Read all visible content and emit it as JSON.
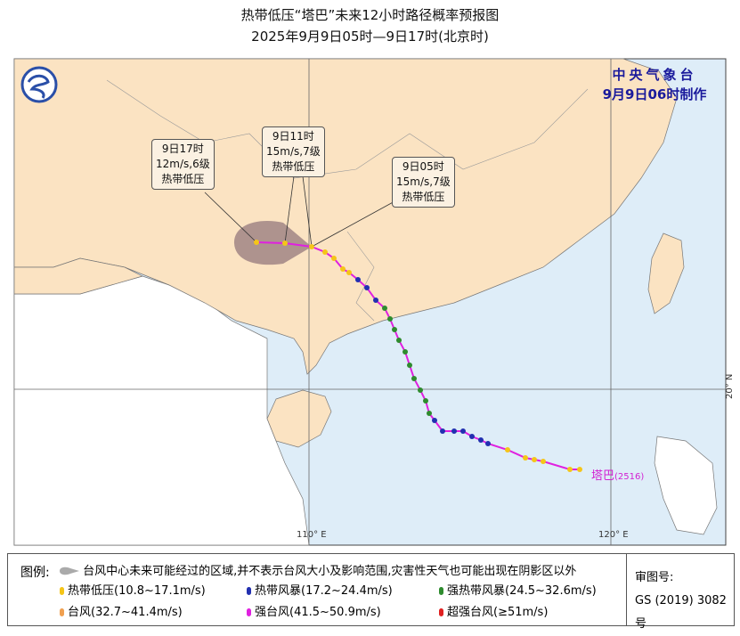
{
  "title": {
    "line1": "热带低压“塔巴”未来12小时路径概率预报图",
    "line2": "2025年9月9日05时—9日17时(北京时)"
  },
  "agency": {
    "name": "中央气象台",
    "issued": "9月9日06时制作"
  },
  "axes": {
    "lon110": "110° E",
    "lon120": "120° E",
    "lat20": "20° N"
  },
  "storm": {
    "name": "塔巴",
    "number": "(2516)"
  },
  "callouts": [
    {
      "time": "9日17时",
      "wind": "12m/s,6级",
      "category": "热带低压"
    },
    {
      "time": "9日11时",
      "wind": "15m/s,7级",
      "category": "热带低压"
    },
    {
      "time": "9日05时",
      "wind": "15m/s,7级",
      "category": "热带低压"
    }
  ],
  "colors": {
    "land": "#fbe3c2",
    "sea": "#deedf8",
    "track": "#e020e0",
    "cone": "#a08585",
    "td": "#f5c518",
    "ts": "#2230b0",
    "sts": "#2e8b2e",
    "ty": "#f0a050",
    "sty": "#e020e0",
    "superty": "#e02020"
  },
  "legend": {
    "title": "图例:",
    "cone_desc": "台风中心未来可能经过的区域,并不表示台风大小及影响范围,灾害性天气也可能出现在阴影区以外",
    "items": [
      {
        "label": "热带低压(10.8~17.1m/s)",
        "color": "#f5c518"
      },
      {
        "label": "热带风暴(17.2~24.4m/s)",
        "color": "#2230b0"
      },
      {
        "label": "强热带风暴(24.5~32.6m/s)",
        "color": "#2e8b2e"
      },
      {
        "label": "台风(32.7~41.4m/s)",
        "color": "#f0a050"
      },
      {
        "label": "强台风(41.5~50.9m/s)",
        "color": "#e020e0"
      },
      {
        "label": "超强台风(≥51m/s)",
        "color": "#e02020"
      }
    ],
    "review_label": "审图号:",
    "review_number": "GS (2019) 3082号"
  }
}
